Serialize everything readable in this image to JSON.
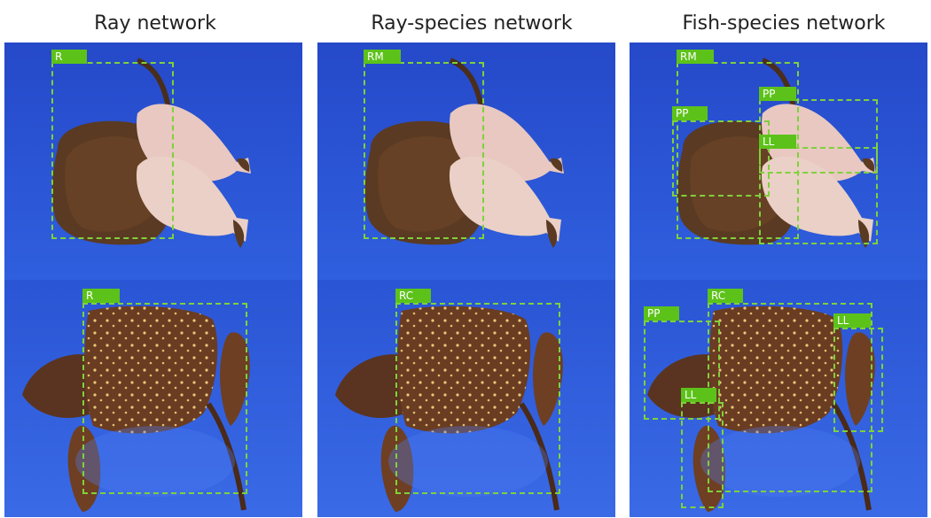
{
  "columns": [
    {
      "title": "Ray network"
    },
    {
      "title": "Ray-species network"
    },
    {
      "title": "Fish-species network"
    }
  ],
  "labels": {
    "ray_top": "R",
    "ray_bottom": "R",
    "rayspecies_top": "RM",
    "rayspecies_bottom": "RC",
    "fish_top_rm": "RM",
    "fish_top_pp1": "PP",
    "fish_top_pp2": "PP",
    "fish_top_ll": "LL",
    "fish_bottom_rc": "RC",
    "fish_bottom_pp": "PP",
    "fish_bottom_ll1": "LL",
    "fish_bottom_ll2": "LL"
  },
  "colors": {
    "background_blue": "#2f58d6",
    "box_dash": "#7fd13b",
    "tag_green": "#5cc21a"
  }
}
